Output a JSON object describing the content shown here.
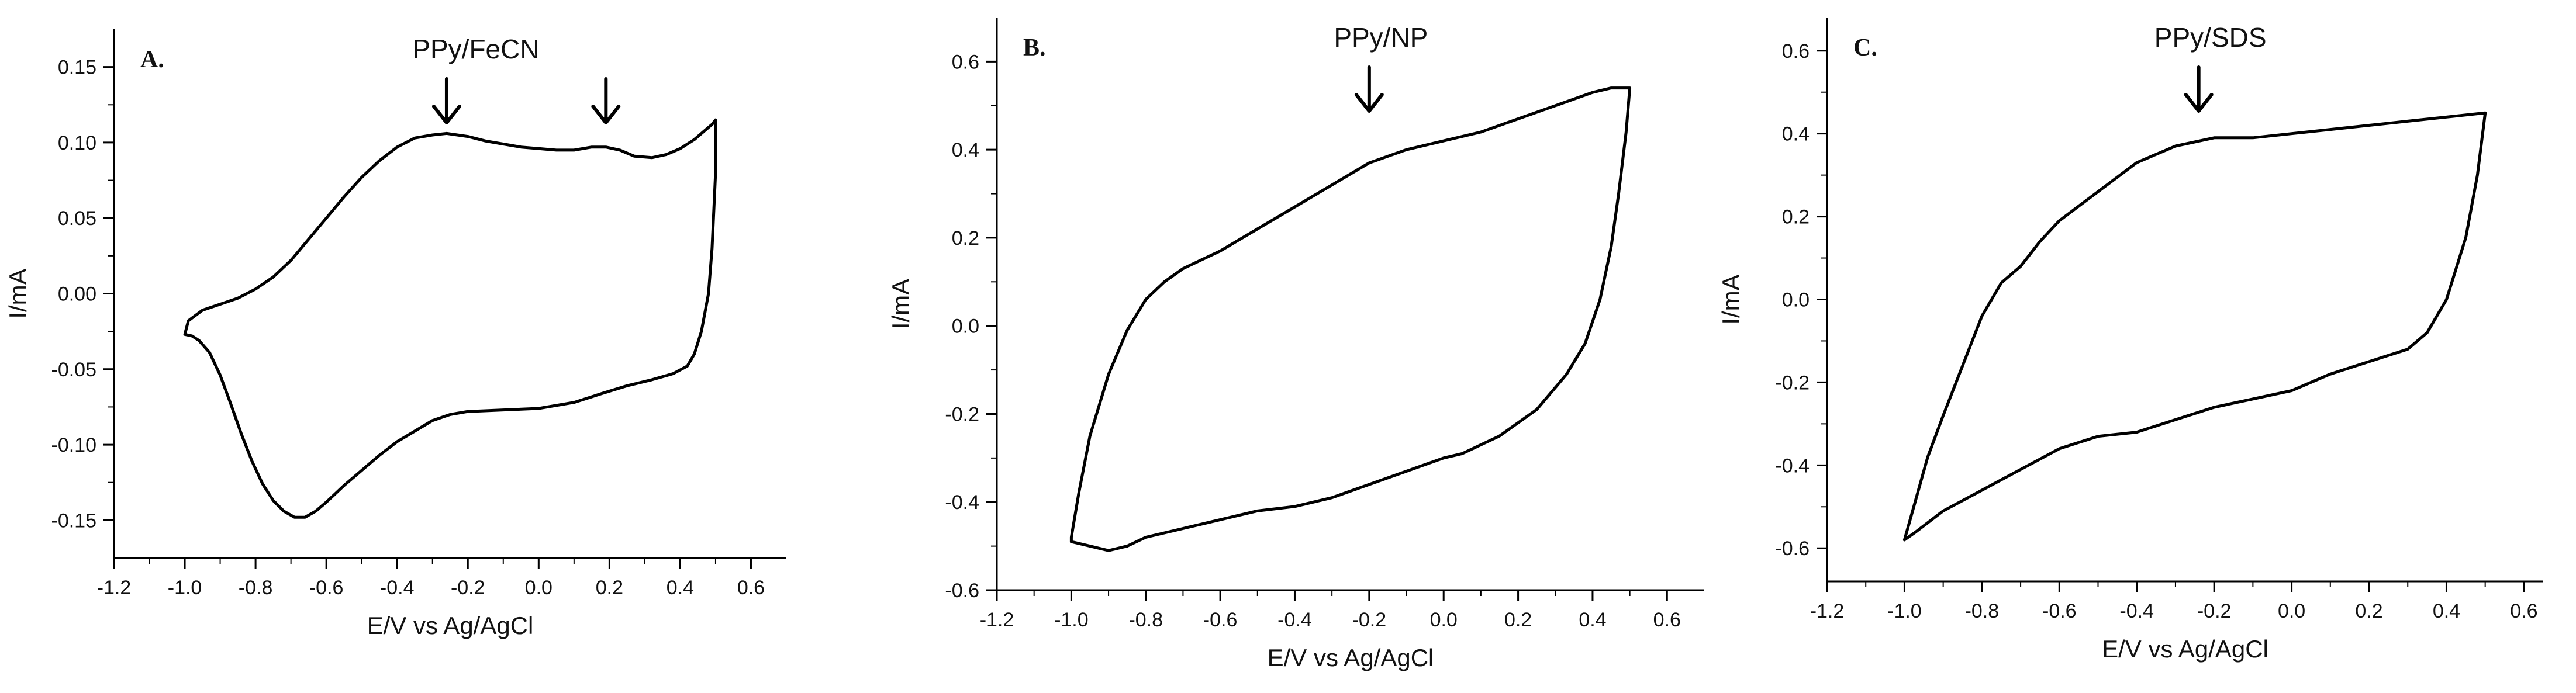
{
  "chart_data": [
    {
      "type": "line",
      "panel_label": "A.",
      "title": "PPy/FeCN",
      "xlabel": "E/V vs Ag/AgCl",
      "ylabel": "I/mA",
      "xlim": [
        -1.2,
        0.7
      ],
      "ylim": [
        -0.175,
        0.175
      ],
      "xticks": [
        "-1.2",
        "-1.0",
        "-0.8",
        "-0.6",
        "-0.4",
        "-0.2",
        "0.0",
        "0.2",
        "0.4",
        "0.6"
      ],
      "yticks": [
        "-0.15",
        "-0.10",
        "-0.05",
        "0.00",
        "0.05",
        "0.10",
        "0.15"
      ],
      "ytick_values": [
        -0.15,
        -0.1,
        -0.05,
        0.0,
        0.05,
        0.1,
        0.15
      ],
      "arrows_at_x": [
        -0.26,
        0.19
      ],
      "series": [
        {
          "points": [
            [
              -1.0,
              -0.027
            ],
            [
              -0.99,
              -0.018
            ],
            [
              -0.95,
              -0.011
            ],
            [
              -0.9,
              -0.007
            ],
            [
              -0.85,
              -0.003
            ],
            [
              -0.8,
              0.003
            ],
            [
              -0.75,
              0.011
            ],
            [
              -0.7,
              0.022
            ],
            [
              -0.65,
              0.036
            ],
            [
              -0.6,
              0.05
            ],
            [
              -0.55,
              0.064
            ],
            [
              -0.5,
              0.077
            ],
            [
              -0.45,
              0.088
            ],
            [
              -0.4,
              0.097
            ],
            [
              -0.35,
              0.103
            ],
            [
              -0.3,
              0.105
            ],
            [
              -0.26,
              0.106
            ],
            [
              -0.2,
              0.104
            ],
            [
              -0.15,
              0.101
            ],
            [
              -0.1,
              0.099
            ],
            [
              -0.05,
              0.097
            ],
            [
              0.0,
              0.096
            ],
            [
              0.05,
              0.095
            ],
            [
              0.1,
              0.095
            ],
            [
              0.15,
              0.097
            ],
            [
              0.19,
              0.097
            ],
            [
              0.23,
              0.095
            ],
            [
              0.27,
              0.091
            ],
            [
              0.32,
              0.09
            ],
            [
              0.36,
              0.092
            ],
            [
              0.4,
              0.096
            ],
            [
              0.44,
              0.102
            ],
            [
              0.47,
              0.108
            ],
            [
              0.49,
              0.112
            ],
            [
              0.5,
              0.115
            ],
            [
              0.5,
              0.08
            ],
            [
              0.49,
              0.03
            ],
            [
              0.48,
              0.0
            ],
            [
              0.46,
              -0.025
            ],
            [
              0.44,
              -0.04
            ],
            [
              0.42,
              -0.048
            ],
            [
              0.38,
              -0.053
            ],
            [
              0.32,
              -0.057
            ],
            [
              0.25,
              -0.061
            ],
            [
              0.18,
              -0.066
            ],
            [
              0.1,
              -0.072
            ],
            [
              0.0,
              -0.076
            ],
            [
              -0.1,
              -0.077
            ],
            [
              -0.2,
              -0.078
            ],
            [
              -0.25,
              -0.08
            ],
            [
              -0.3,
              -0.084
            ],
            [
              -0.35,
              -0.091
            ],
            [
              -0.4,
              -0.098
            ],
            [
              -0.45,
              -0.107
            ],
            [
              -0.5,
              -0.117
            ],
            [
              -0.55,
              -0.127
            ],
            [
              -0.6,
              -0.138
            ],
            [
              -0.63,
              -0.144
            ],
            [
              -0.66,
              -0.148
            ],
            [
              -0.69,
              -0.148
            ],
            [
              -0.72,
              -0.144
            ],
            [
              -0.75,
              -0.137
            ],
            [
              -0.78,
              -0.126
            ],
            [
              -0.81,
              -0.111
            ],
            [
              -0.84,
              -0.093
            ],
            [
              -0.87,
              -0.073
            ],
            [
              -0.9,
              -0.054
            ],
            [
              -0.93,
              -0.039
            ],
            [
              -0.96,
              -0.031
            ],
            [
              -0.98,
              -0.028
            ],
            [
              -1.0,
              -0.027
            ]
          ]
        }
      ]
    },
    {
      "type": "line",
      "panel_label": "B.",
      "title": "PPy/NP",
      "xlabel": "E/V vs Ag/AgCl",
      "ylabel": "I/mA",
      "xlim": [
        -1.2,
        0.7
      ],
      "ylim": [
        -0.6,
        0.7
      ],
      "xticks": [
        "-1.2",
        "-1.0",
        "-0.8",
        "-0.6",
        "-0.4",
        "-0.2",
        "0.0",
        "0.2",
        "0.4",
        "0.6"
      ],
      "yticks": [
        "-0.6",
        "-0.4",
        "-0.2",
        "0.0",
        "0.2",
        "0.4",
        "0.6"
      ],
      "ytick_values": [
        -0.6,
        -0.4,
        -0.2,
        0.0,
        0.2,
        0.4,
        0.6
      ],
      "arrows_at_x": [
        -0.2
      ],
      "series": [
        {
          "points": [
            [
              -1.0,
              -0.48
            ],
            [
              -0.98,
              -0.38
            ],
            [
              -0.95,
              -0.25
            ],
            [
              -0.9,
              -0.11
            ],
            [
              -0.85,
              -0.01
            ],
            [
              -0.8,
              0.06
            ],
            [
              -0.75,
              0.1
            ],
            [
              -0.7,
              0.13
            ],
            [
              -0.6,
              0.17
            ],
            [
              -0.5,
              0.22
            ],
            [
              -0.4,
              0.27
            ],
            [
              -0.3,
              0.32
            ],
            [
              -0.2,
              0.37
            ],
            [
              -0.1,
              0.4
            ],
            [
              0.0,
              0.42
            ],
            [
              0.1,
              0.44
            ],
            [
              0.2,
              0.47
            ],
            [
              0.3,
              0.5
            ],
            [
              0.4,
              0.53
            ],
            [
              0.45,
              0.54
            ],
            [
              0.5,
              0.54
            ],
            [
              0.49,
              0.44
            ],
            [
              0.47,
              0.3
            ],
            [
              0.45,
              0.18
            ],
            [
              0.42,
              0.06
            ],
            [
              0.38,
              -0.04
            ],
            [
              0.33,
              -0.11
            ],
            [
              0.25,
              -0.19
            ],
            [
              0.15,
              -0.25
            ],
            [
              0.05,
              -0.29
            ],
            [
              0.0,
              -0.3
            ],
            [
              -0.1,
              -0.33
            ],
            [
              -0.2,
              -0.36
            ],
            [
              -0.3,
              -0.39
            ],
            [
              -0.4,
              -0.41
            ],
            [
              -0.5,
              -0.42
            ],
            [
              -0.6,
              -0.44
            ],
            [
              -0.7,
              -0.46
            ],
            [
              -0.8,
              -0.48
            ],
            [
              -0.85,
              -0.5
            ],
            [
              -0.9,
              -0.51
            ],
            [
              -0.95,
              -0.5
            ],
            [
              -1.0,
              -0.49
            ],
            [
              -1.0,
              -0.48
            ]
          ]
        }
      ]
    },
    {
      "type": "line",
      "panel_label": "C.",
      "title": "PPy/SDS",
      "xlabel": "E/V vs Ag/AgCl",
      "ylabel": "I/mA",
      "xlim": [
        -1.2,
        0.65
      ],
      "ylim": [
        -0.68,
        0.68
      ],
      "xticks": [
        "-1.2",
        "-1.0",
        "-0.8",
        "-0.6",
        "-0.4",
        "-0.2",
        "0.0",
        "0.2",
        "0.4",
        "0.6"
      ],
      "yticks": [
        "-0.6",
        "-0.4",
        "-0.2",
        "0.0",
        "0.2",
        "0.4",
        "0.6"
      ],
      "ytick_values": [
        -0.6,
        -0.4,
        -0.2,
        0.0,
        0.2,
        0.4,
        0.6
      ],
      "arrows_at_x": [
        -0.24
      ],
      "series": [
        {
          "points": [
            [
              -1.0,
              -0.58
            ],
            [
              -0.97,
              -0.48
            ],
            [
              -0.94,
              -0.38
            ],
            [
              -0.9,
              -0.28
            ],
            [
              -0.85,
              -0.16
            ],
            [
              -0.8,
              -0.04
            ],
            [
              -0.75,
              0.04
            ],
            [
              -0.7,
              0.08
            ],
            [
              -0.65,
              0.14
            ],
            [
              -0.6,
              0.19
            ],
            [
              -0.5,
              0.26
            ],
            [
              -0.4,
              0.33
            ],
            [
              -0.3,
              0.37
            ],
            [
              -0.2,
              0.39
            ],
            [
              -0.1,
              0.39
            ],
            [
              0.0,
              0.4
            ],
            [
              0.1,
              0.41
            ],
            [
              0.2,
              0.42
            ],
            [
              0.3,
              0.43
            ],
            [
              0.4,
              0.44
            ],
            [
              0.5,
              0.45
            ],
            [
              0.48,
              0.3
            ],
            [
              0.45,
              0.15
            ],
            [
              0.4,
              0.0
            ],
            [
              0.35,
              -0.08
            ],
            [
              0.3,
              -0.12
            ],
            [
              0.2,
              -0.15
            ],
            [
              0.1,
              -0.18
            ],
            [
              0.0,
              -0.22
            ],
            [
              -0.1,
              -0.24
            ],
            [
              -0.2,
              -0.26
            ],
            [
              -0.3,
              -0.29
            ],
            [
              -0.4,
              -0.32
            ],
            [
              -0.5,
              -0.33
            ],
            [
              -0.6,
              -0.36
            ],
            [
              -0.7,
              -0.41
            ],
            [
              -0.8,
              -0.46
            ],
            [
              -0.9,
              -0.51
            ],
            [
              -0.97,
              -0.56
            ],
            [
              -1.0,
              -0.58
            ]
          ]
        }
      ]
    }
  ]
}
